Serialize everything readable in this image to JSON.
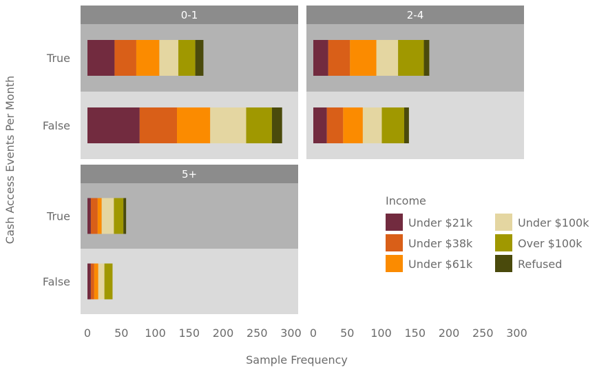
{
  "chart_data": {
    "type": "bar",
    "orientation": "horizontal",
    "stacked": true,
    "ylabel": "Cash Access Events Per Month",
    "xlabel": "Sample Frequency",
    "xlim": [
      0,
      320
    ],
    "xticks": [
      0,
      50,
      100,
      150,
      200,
      250,
      300
    ],
    "categories": [
      "True",
      "False"
    ],
    "legend": {
      "title": "Income",
      "position": "bottom-right"
    },
    "series": [
      {
        "name": "Under $21k",
        "color": "#722b3f"
      },
      {
        "name": "Under $38k",
        "color": "#d95f18"
      },
      {
        "name": "Under $61k",
        "color": "#fb8b00"
      },
      {
        "name": "Under $100k",
        "color": "#e4d6a1"
      },
      {
        "name": "Over $100k",
        "color": "#a09800"
      },
      {
        "name": "Refused",
        "color": "#4a4a0c"
      }
    ],
    "panels": [
      {
        "title": "0-1",
        "rows": [
          {
            "category": "True",
            "values": [
              40,
              32,
              34,
              28,
              25,
              12
            ]
          },
          {
            "category": "False",
            "values": [
              77,
              55,
              49,
              53,
              38,
              15
            ]
          }
        ]
      },
      {
        "title": "2-4",
        "rows": [
          {
            "category": "True",
            "values": [
              22,
              32,
              39,
              32,
              38,
              8
            ]
          },
          {
            "category": "False",
            "values": [
              20,
              24,
              29,
              28,
              33,
              7
            ]
          }
        ]
      },
      {
        "title": "5+",
        "rows": [
          {
            "category": "True",
            "values": [
              5,
              10,
              6,
              18,
              14,
              4
            ]
          },
          {
            "category": "False",
            "values": [
              5,
              5,
              6,
              9,
              12,
              0
            ]
          }
        ]
      }
    ]
  }
}
